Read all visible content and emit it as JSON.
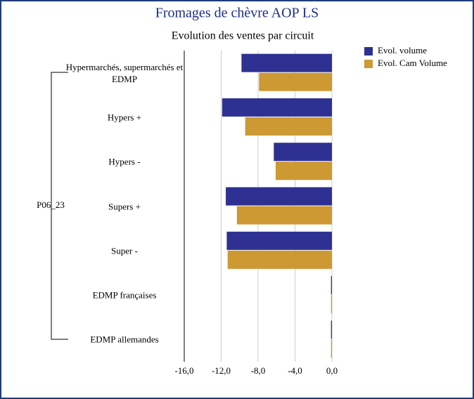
{
  "chart_data": {
    "type": "bar",
    "orientation": "horizontal",
    "title": "Fromages de chèvre AOP LS",
    "subtitle": "Evolution des ventes par circuit",
    "group_label": "P06_23",
    "categories": [
      "Hypermarchés, supermarchés et EDMP",
      "Hypers +",
      "Hypers -",
      "Supers +",
      "Super -",
      "EDMP françaises",
      "EDMP allemandes"
    ],
    "series": [
      {
        "name": "Evol. volume",
        "color": "#2e3192",
        "values": [
          -9.8,
          -11.9,
          -6.3,
          -11.5,
          -11.4,
          -0.1,
          -0.1
        ]
      },
      {
        "name": "Evol. Cam Volume",
        "color": "#cc9933",
        "values": [
          -7.9,
          -9.4,
          -6.1,
          -10.3,
          -11.3,
          -0.1,
          -0.1
        ]
      }
    ],
    "xlim": [
      -16,
      0
    ],
    "xticks": [
      {
        "value": -16,
        "label": "-16,0"
      },
      {
        "value": -12,
        "label": "-12,0"
      },
      {
        "value": -8,
        "label": "-8,0"
      },
      {
        "value": -4,
        "label": "-4,0"
      },
      {
        "value": 0,
        "label": "0,0"
      }
    ],
    "grid": true,
    "legend": "top-right"
  }
}
